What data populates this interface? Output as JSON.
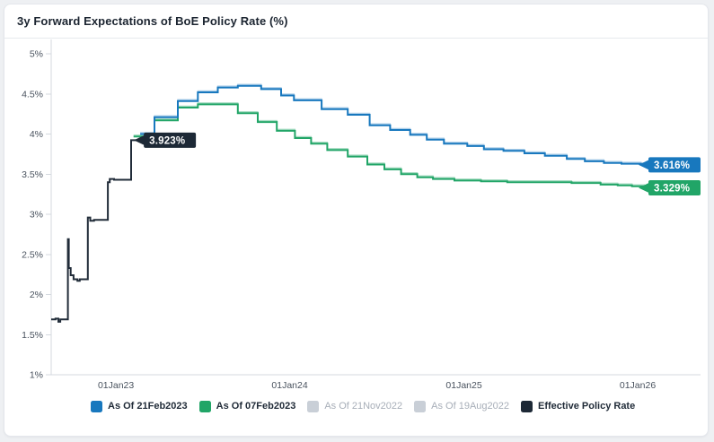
{
  "header": {
    "title": "3y Forward Expectations of BoE Policy Rate (%)"
  },
  "legend": {
    "items": [
      {
        "label": "As Of 21Feb2023",
        "color": "#1878be",
        "enabled": true
      },
      {
        "label": "As Of 07Feb2023",
        "color": "#21a567",
        "enabled": true
      },
      {
        "label": "As Of 21Nov2022",
        "color": "#c9cfd7",
        "enabled": false
      },
      {
        "label": "As Of 19Aug2022",
        "color": "#c9cfd7",
        "enabled": false
      },
      {
        "label": "Effective Policy Rate",
        "color": "#1d2936",
        "enabled": true
      }
    ]
  },
  "chart_data": {
    "type": "line",
    "title": "3y Forward Expectations of BoE Policy Rate (%)",
    "subtype": "step-after",
    "grid": false,
    "legend_position": "bottom",
    "x_domain": [
      "2022-08-18",
      "2026-05-13"
    ],
    "y_domain": [
      1,
      5
    ],
    "ylabel": "",
    "xlabel": "",
    "y_ticks": [
      {
        "value": 1,
        "label": "1%"
      },
      {
        "value": 1.5,
        "label": "1.5%"
      },
      {
        "value": 2,
        "label": "2%"
      },
      {
        "value": 2.5,
        "label": "2.5%"
      },
      {
        "value": 3,
        "label": "3%"
      },
      {
        "value": 3.5,
        "label": "3.5%"
      },
      {
        "value": 4,
        "label": "4%"
      },
      {
        "value": 4.5,
        "label": "4.5%"
      },
      {
        "value": 5,
        "label": "5%"
      }
    ],
    "x_ticks": [
      {
        "date": "2023-01-01",
        "label": "01Jan23"
      },
      {
        "date": "2024-01-01",
        "label": "01Jan24"
      },
      {
        "date": "2025-01-01",
        "label": "01Jan25"
      },
      {
        "date": "2026-01-01",
        "label": "01Jan26"
      }
    ],
    "series": [
      {
        "name": "As Of 21Feb2023",
        "color": "#1878be",
        "halo": "#aecfe9",
        "visible": true,
        "points": [
          [
            "2023-02-21",
            4.0
          ],
          [
            "2023-03-23",
            4.21
          ],
          [
            "2023-05-11",
            4.41
          ],
          [
            "2023-06-22",
            4.52
          ],
          [
            "2023-08-03",
            4.58
          ],
          [
            "2023-09-14",
            4.6
          ],
          [
            "2023-11-02",
            4.56
          ],
          [
            "2023-12-14",
            4.48
          ],
          [
            "2024-01-10",
            4.42
          ],
          [
            "2024-03-08",
            4.31
          ],
          [
            "2024-05-02",
            4.24
          ],
          [
            "2024-06-17",
            4.11
          ],
          [
            "2024-07-30",
            4.05
          ],
          [
            "2024-09-10",
            3.99
          ],
          [
            "2024-10-15",
            3.93
          ],
          [
            "2024-11-20",
            3.88
          ],
          [
            "2025-01-08",
            3.85
          ],
          [
            "2025-02-12",
            3.81
          ],
          [
            "2025-03-25",
            3.79
          ],
          [
            "2025-05-08",
            3.76
          ],
          [
            "2025-06-20",
            3.73
          ],
          [
            "2025-08-05",
            3.69
          ],
          [
            "2025-09-12",
            3.66
          ],
          [
            "2025-10-22",
            3.64
          ],
          [
            "2025-11-28",
            3.63
          ],
          [
            "2026-01-08",
            3.62
          ],
          [
            "2026-02-21",
            3.616
          ]
        ]
      },
      {
        "name": "As Of 07Feb2023",
        "color": "#21a567",
        "halo": "#a8dcc3",
        "visible": true,
        "points": [
          [
            "2023-02-07",
            3.97
          ],
          [
            "2023-03-23",
            4.17
          ],
          [
            "2023-05-11",
            4.33
          ],
          [
            "2023-06-22",
            4.37
          ],
          [
            "2023-09-14",
            4.26
          ],
          [
            "2023-10-26",
            4.15
          ],
          [
            "2023-12-05",
            4.04
          ],
          [
            "2024-01-12",
            3.95
          ],
          [
            "2024-02-15",
            3.88
          ],
          [
            "2024-03-20",
            3.8
          ],
          [
            "2024-05-02",
            3.72
          ],
          [
            "2024-06-12",
            3.62
          ],
          [
            "2024-07-18",
            3.56
          ],
          [
            "2024-08-22",
            3.5
          ],
          [
            "2024-09-25",
            3.46
          ],
          [
            "2024-10-28",
            3.44
          ],
          [
            "2024-12-12",
            3.42
          ],
          [
            "2025-02-06",
            3.41
          ],
          [
            "2025-04-02",
            3.4
          ],
          [
            "2025-08-15",
            3.39
          ],
          [
            "2025-10-15",
            3.37
          ],
          [
            "2025-11-20",
            3.36
          ],
          [
            "2025-12-20",
            3.35
          ],
          [
            "2026-01-15",
            3.34
          ],
          [
            "2026-02-07",
            3.329
          ]
        ]
      },
      {
        "name": "As Of 21Nov2022",
        "color": "#c9cfd7",
        "halo": "#e2e5ea",
        "visible": false,
        "points": []
      },
      {
        "name": "As Of 19Aug2022",
        "color": "#c9cfd7",
        "halo": "#e2e5ea",
        "visible": false,
        "points": []
      },
      {
        "name": "Effective Policy Rate",
        "color": "#212c39",
        "halo": null,
        "visible": true,
        "points": [
          [
            "2022-08-18",
            1.69
          ],
          [
            "2022-08-27",
            1.7
          ],
          [
            "2022-09-02",
            1.66
          ],
          [
            "2022-09-06",
            1.69
          ],
          [
            "2022-09-22",
            2.69
          ],
          [
            "2022-09-24",
            2.33
          ],
          [
            "2022-09-28",
            2.24
          ],
          [
            "2022-10-04",
            2.19
          ],
          [
            "2022-10-12",
            2.17
          ],
          [
            "2022-10-17",
            2.19
          ],
          [
            "2022-11-03",
            2.96
          ],
          [
            "2022-11-08",
            2.92
          ],
          [
            "2022-11-16",
            2.93
          ],
          [
            "2022-12-15",
            3.4
          ],
          [
            "2022-12-19",
            3.44
          ],
          [
            "2022-12-28",
            3.43
          ],
          [
            "2023-02-02",
            3.923
          ],
          [
            "2023-02-21",
            3.923
          ]
        ]
      }
    ],
    "end_labels": [
      {
        "text": "3.616%",
        "series": 0,
        "date": "2026-02-21",
        "value": 3.616,
        "bg": "#1878be",
        "text_color": "#ffffff"
      },
      {
        "text": "3.329%",
        "series": 1,
        "date": "2026-02-07",
        "value": 3.329,
        "bg": "#21a567",
        "text_color": "#ffffff"
      },
      {
        "text": "3.923%",
        "series": 4,
        "date": "2023-02-21",
        "value": 3.923,
        "bg": "#1d2936",
        "text_color": "#ffffff"
      }
    ],
    "axis_color": "#d4d9df",
    "tick_label_color": "#49525e"
  }
}
